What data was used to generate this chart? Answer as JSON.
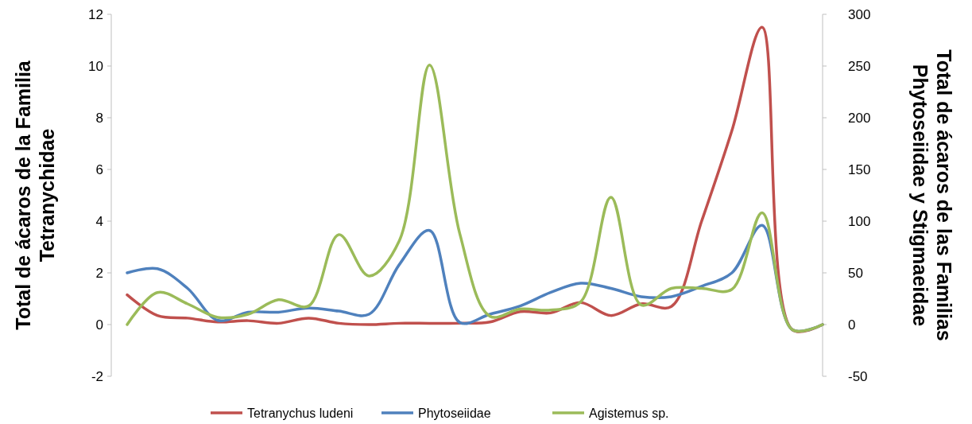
{
  "chart_data": {
    "type": "line",
    "ylabel": "Total de ácaros  de la Familia\nTetranychidae",
    "y2label": "Total de ácaros  de las Familias\nPhytoseiidae y Stigmaeidae",
    "categories": [
      null,
      null,
      null,
      null,
      null,
      null,
      null,
      null,
      null,
      null,
      null,
      null,
      null,
      null,
      null,
      null,
      null,
      null,
      null,
      null,
      null,
      null,
      null,
      null
    ],
    "ylim": [
      -2,
      12
    ],
    "yticks": [
      -2,
      0,
      2,
      4,
      6,
      8,
      10,
      12
    ],
    "y2lim": [
      -50,
      300
    ],
    "y2ticks": [
      -50,
      0,
      50,
      100,
      150,
      200,
      250,
      300
    ],
    "grid": false,
    "legend": "bottom",
    "marker": "none",
    "line_style": "solid",
    "series": [
      {
        "name": "Tetranychus ludeni",
        "color": "#c0504d",
        "values": [
          1.15,
          0.35,
          0.25,
          0.1,
          0.15,
          0.05,
          0.25,
          0.05,
          0,
          0.05,
          0.05,
          0.05,
          0.1,
          0.5,
          0.45,
          0.85,
          0.35,
          0.8,
          0.7,
          4.0,
          7.5,
          11.5,
          -0.2,
          0
        ]
      },
      {
        "name": "Phytoseiidae",
        "color": "#4f81bd",
        "axis": "y2",
        "values": [
          50,
          54,
          35,
          4,
          12,
          12,
          16,
          13,
          10,
          58,
          91,
          2,
          10,
          18,
          31,
          40,
          35,
          27,
          27,
          37,
          50,
          96,
          -5,
          0
        ]
      },
      {
        "name": "Agistemus sp.",
        "color": "#9bbb59",
        "axis": "y2",
        "values": [
          0,
          31,
          20,
          7,
          10,
          24,
          18,
          87,
          47,
          81,
          251,
          88,
          8,
          15,
          14,
          22,
          123,
          19,
          35,
          35,
          34,
          108,
          -5,
          0
        ]
      }
    ]
  }
}
